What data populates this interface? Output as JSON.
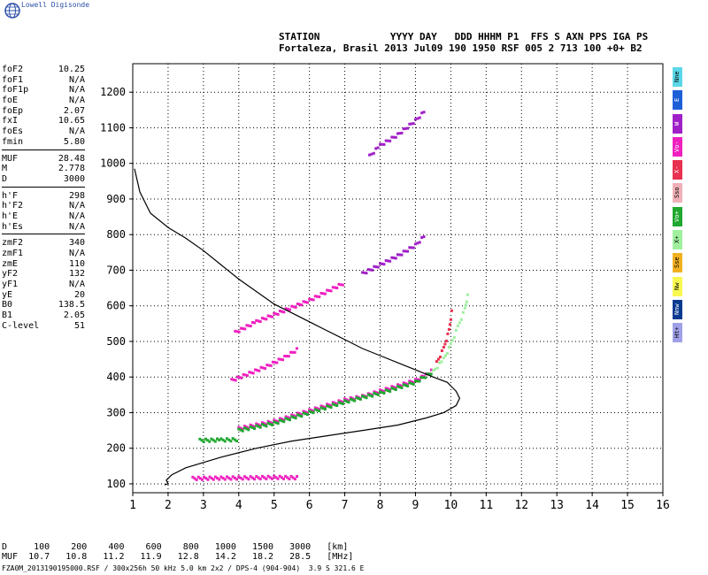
{
  "brand": "Lowell Digisonde",
  "header": {
    "line1": "STATION            YYYY DAY   DDD HHHM P1  FFS S AXN PPS IGA PS",
    "line2": "Fortaleza, Brasil 2013 Jul09 190 1950 RSF 005 2 713 100 +0+ B2"
  },
  "params_group1": [
    {
      "name": "foF2",
      "value": "10.25"
    },
    {
      "name": "foF1",
      "value": "N/A"
    },
    {
      "name": "foF1p",
      "value": "N/A"
    },
    {
      "name": "foE",
      "value": "N/A"
    },
    {
      "name": "foEp",
      "value": "2.07"
    },
    {
      "name": "fxI",
      "value": "10.65"
    },
    {
      "name": "foEs",
      "value": "N/A"
    },
    {
      "name": "fmin",
      "value": "5.80"
    }
  ],
  "params_group2": [
    {
      "name": "MUF",
      "value": "28.48"
    },
    {
      "name": "M",
      "value": "2.778"
    },
    {
      "name": "D",
      "value": "3000"
    }
  ],
  "params_group3": [
    {
      "name": "h'F",
      "value": "298"
    },
    {
      "name": "h'F2",
      "value": "N/A"
    },
    {
      "name": "h'E",
      "value": "N/A"
    },
    {
      "name": "h'Es",
      "value": "N/A"
    }
  ],
  "params_group4": [
    {
      "name": "zmF2",
      "value": "340"
    },
    {
      "name": "zmF1",
      "value": "N/A"
    },
    {
      "name": "zmE",
      "value": "110"
    },
    {
      "name": "yF2",
      "value": "132"
    },
    {
      "name": "yF1",
      "value": "N/A"
    },
    {
      "name": "yE",
      "value": "20"
    },
    {
      "name": "B0",
      "value": "138.5"
    },
    {
      "name": "B1",
      "value": "2.05"
    },
    {
      "name": "C-level",
      "value": "51"
    }
  ],
  "legend": [
    {
      "label": "Nne",
      "color": "#5ad7e8"
    },
    {
      "label": "E",
      "color": "#1e5fd8"
    },
    {
      "label": "W",
      "color": "#a020c8"
    },
    {
      "label": "Vo-",
      "color": "#f020c0"
    },
    {
      "label": "X-",
      "color": "#e83050"
    },
    {
      "label": "Sso",
      "color": "#f0b0b8"
    },
    {
      "label": "Vo+",
      "color": "#20a830"
    },
    {
      "label": "X+",
      "color": "#a0f0a0"
    },
    {
      "label": "Sse",
      "color": "#f0b020"
    },
    {
      "label": "Nw",
      "color": "#f8f850"
    },
    {
      "label": "Nnw",
      "color": "#0a3a90"
    },
    {
      "label": "Ht+",
      "color": "#a0a0e8"
    }
  ],
  "table": {
    "line1": "D     100    200    400    600    800   1000   1500   3000   [km]",
    "line2": "MUF  10.7   10.8   11.2   11.9   12.8   14.2   18.2   28.5   [MHz]"
  },
  "footer": "FZA0M_2013190195000.RSF / 300x256h 50 kHz 5.0 km 2x2 / DPS-4 (904-904)  3.9 S 321.6 E",
  "chart_data": {
    "type": "scatter",
    "xlim": [
      1,
      16
    ],
    "ylim": [
      75,
      1280
    ],
    "x_ticks": [
      1,
      2,
      3,
      4,
      5,
      6,
      7,
      8,
      9,
      10,
      11,
      12,
      13,
      14,
      15,
      16
    ],
    "y_ticks": [
      100,
      200,
      300,
      400,
      500,
      600,
      700,
      800,
      900,
      1000,
      1100,
      1200
    ],
    "grid": true,
    "profile": {
      "x": [
        1.05,
        1.2,
        1.5,
        2.0,
        2.5,
        3.0,
        3.5,
        4.0,
        4.5,
        5.0,
        5.5,
        6.0,
        6.5,
        7.0,
        7.5,
        8.0,
        8.5,
        9.0,
        9.5,
        9.9,
        10.15,
        10.25,
        10.15,
        9.8,
        9.3,
        8.5,
        7.5,
        6.5,
        5.5,
        4.5,
        3.5,
        2.5,
        2.1,
        1.95,
        2.0,
        1.9
      ],
      "y": [
        985,
        920,
        860,
        820,
        790,
        755,
        715,
        675,
        640,
        605,
        580,
        555,
        530,
        505,
        480,
        460,
        440,
        420,
        400,
        385,
        360,
        340,
        320,
        300,
        285,
        265,
        250,
        235,
        220,
        200,
        175,
        145,
        125,
        110,
        100,
        97
      ]
    },
    "traces": [
      {
        "name": "F-trace",
        "color": "#f020c0",
        "x": [
          4.0,
          5.0,
          6.0,
          7.0,
          7.5,
          8.0,
          8.5,
          9.0,
          9.3,
          9.5
        ],
        "y": [
          255,
          275,
          305,
          335,
          345,
          360,
          375,
          390,
          405,
          420
        ]
      },
      {
        "name": "F-trace green",
        "color": "#20a830",
        "x": [
          4.0,
          5.0,
          6.0,
          7.0,
          8.0,
          9.0,
          9.5
        ],
        "y": [
          250,
          270,
          300,
          330,
          355,
          385,
          415
        ]
      },
      {
        "name": "X-trace",
        "color": "#a0f0a0",
        "x": [
          9.5,
          9.8,
          10.0,
          10.2,
          10.4,
          10.5
        ],
        "y": [
          415,
          450,
          490,
          540,
          590,
          640
        ]
      },
      {
        "name": "O-cusp",
        "color": "#e83050",
        "x": [
          9.6,
          9.8,
          9.95,
          10.05
        ],
        "y": [
          440,
          480,
          530,
          600
        ]
      },
      {
        "name": "2F low",
        "color": "#f020c0",
        "x": [
          3.9,
          4.5,
          5.0,
          5.5,
          6.0,
          6.5,
          7.0
        ],
        "y": [
          525,
          555,
          575,
          595,
          615,
          640,
          665
        ]
      },
      {
        "name": "2F mid",
        "color": "#f020c0",
        "x": [
          3.8,
          4.3,
          4.8,
          5.3,
          5.7
        ],
        "y": [
          390,
          410,
          430,
          455,
          480
        ]
      },
      {
        "name": "2F upper",
        "color": "#a020c8",
        "x": [
          7.5,
          8.0,
          8.5,
          9.0,
          9.3
        ],
        "y": [
          690,
          715,
          740,
          770,
          800
        ]
      },
      {
        "name": "3F",
        "color": "#a020c8",
        "x": [
          7.7,
          8.0,
          8.5,
          9.0,
          9.3
        ],
        "y": [
          1020,
          1050,
          1080,
          1120,
          1150
        ]
      },
      {
        "name": "Es band",
        "color": "#f020c0",
        "x": [
          2.7,
          3.5,
          4.5,
          5.0,
          5.7
        ],
        "y": [
          115,
          116,
          117,
          118,
          117
        ]
      },
      {
        "name": "Low band",
        "color": "#20a830",
        "x": [
          2.9,
          3.5,
          4.0
        ],
        "y": [
          222,
          223,
          224
        ]
      }
    ]
  }
}
